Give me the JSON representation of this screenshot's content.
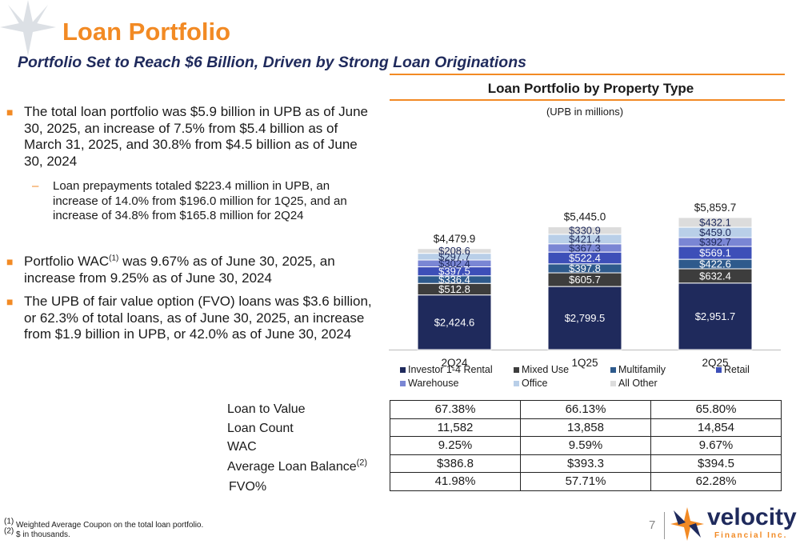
{
  "header": {
    "title": "Loan Portfolio",
    "subtitle": "Portfolio Set to Reach $6 Billion, Driven by Strong Loan Originations"
  },
  "bullets": [
    {
      "text": "The total loan portfolio was $5.9 billion in UPB as of June 30, 2025, an increase of 7.5% from $5.4 billion as of March 31, 2025, and 30.8% from $4.5 billion as of June 30, 2024"
    },
    {
      "text": "Loan prepayments totaled $223.4 million in UPB, an increase of 14.0% from $196.0 million for 1Q25, and an increase of 34.8% from $165.8 million for 2Q24"
    },
    {
      "text_pre": "Portfolio WAC",
      "sup": "(1)",
      "text_post": " was 9.67% as of June 30, 2025, an increase from 9.25% as of June 30, 2024"
    },
    {
      "text": "The UPB of fair value option (FVO) loans was $3.6 billion, or 62.3% of total loans, as of June 30, 2025, an increase from $1.9 billion in UPB, or 42.0% as of June 30, 2024"
    }
  ],
  "chart_data": {
    "type": "bar",
    "stacked": true,
    "title": "Loan Portfolio by Property Type",
    "subtitle": "(UPB in millions)",
    "categories": [
      "2Q24",
      "1Q25",
      "2Q25"
    ],
    "totals": [
      "$4,479.9",
      "$5,445.0",
      "$5,859.7"
    ],
    "series": [
      {
        "name": "Investor 1-4 Rental",
        "color": "#1f2a5c",
        "values": [
          2424.6,
          2799.5,
          2951.7
        ],
        "labels": [
          "$2,424.6",
          "$2,799.5",
          "$2,951.7"
        ]
      },
      {
        "name": "Mixed Use",
        "color": "#3d3d3d",
        "values": [
          512.8,
          605.7,
          632.4
        ],
        "labels": [
          "$512.8",
          "$605.7",
          "$632.4"
        ]
      },
      {
        "name": "Multifamily",
        "color": "#2e5a8c",
        "values": [
          336.4,
          397.8,
          422.6
        ],
        "labels": [
          "$336.4",
          "$397.8",
          "$422.6"
        ]
      },
      {
        "name": "Retail",
        "color": "#3d4fb8",
        "values": [
          397.5,
          522.4,
          569.1
        ],
        "labels": [
          "$397.5",
          "$522.4",
          "$569.1"
        ]
      },
      {
        "name": "Warehouse",
        "color": "#7a86d4",
        "values": [
          302.4,
          367.3,
          392.7
        ],
        "labels": [
          "$302.4",
          "$367.3",
          "$392.7"
        ]
      },
      {
        "name": "Office",
        "color": "#b9cfe8",
        "values": [
          297.7,
          421.4,
          459.0
        ],
        "labels": [
          "$297.7",
          "$421.4",
          "$459.0"
        ]
      },
      {
        "name": "All Other",
        "color": "#dcdcdc",
        "values": [
          208.6,
          330.9,
          432.1
        ],
        "labels": [
          "$208.6",
          "$330.9",
          "$432.1"
        ]
      }
    ],
    "legend": "bottom",
    "grid": false
  },
  "metrics": {
    "labels": [
      "Loan to Value",
      "Loan Count",
      "WAC",
      "Average Loan Balance",
      "FVO%"
    ],
    "label_sup": [
      "",
      "",
      "",
      "(2)",
      ""
    ],
    "rows": [
      [
        "67.38%",
        "66.13%",
        "65.80%"
      ],
      [
        "11,582",
        "13,858",
        "14,854"
      ],
      [
        "9.25%",
        "9.59%",
        "9.67%"
      ],
      [
        "$386.8",
        "$393.3",
        "$394.5"
      ],
      [
        "41.98%",
        "57.71%",
        "62.28%"
      ]
    ]
  },
  "footnotes": [
    {
      "mark": "(1)",
      "text": " Weighted Average Coupon on the total loan portfolio."
    },
    {
      "mark": "(2)",
      "text": " $ in thousands."
    }
  ],
  "page_number": "7",
  "logo": {
    "name": "velocity",
    "sub": "Financial Inc."
  },
  "colors": {
    "accent": "#f28a24",
    "navy": "#1f2a5c"
  }
}
